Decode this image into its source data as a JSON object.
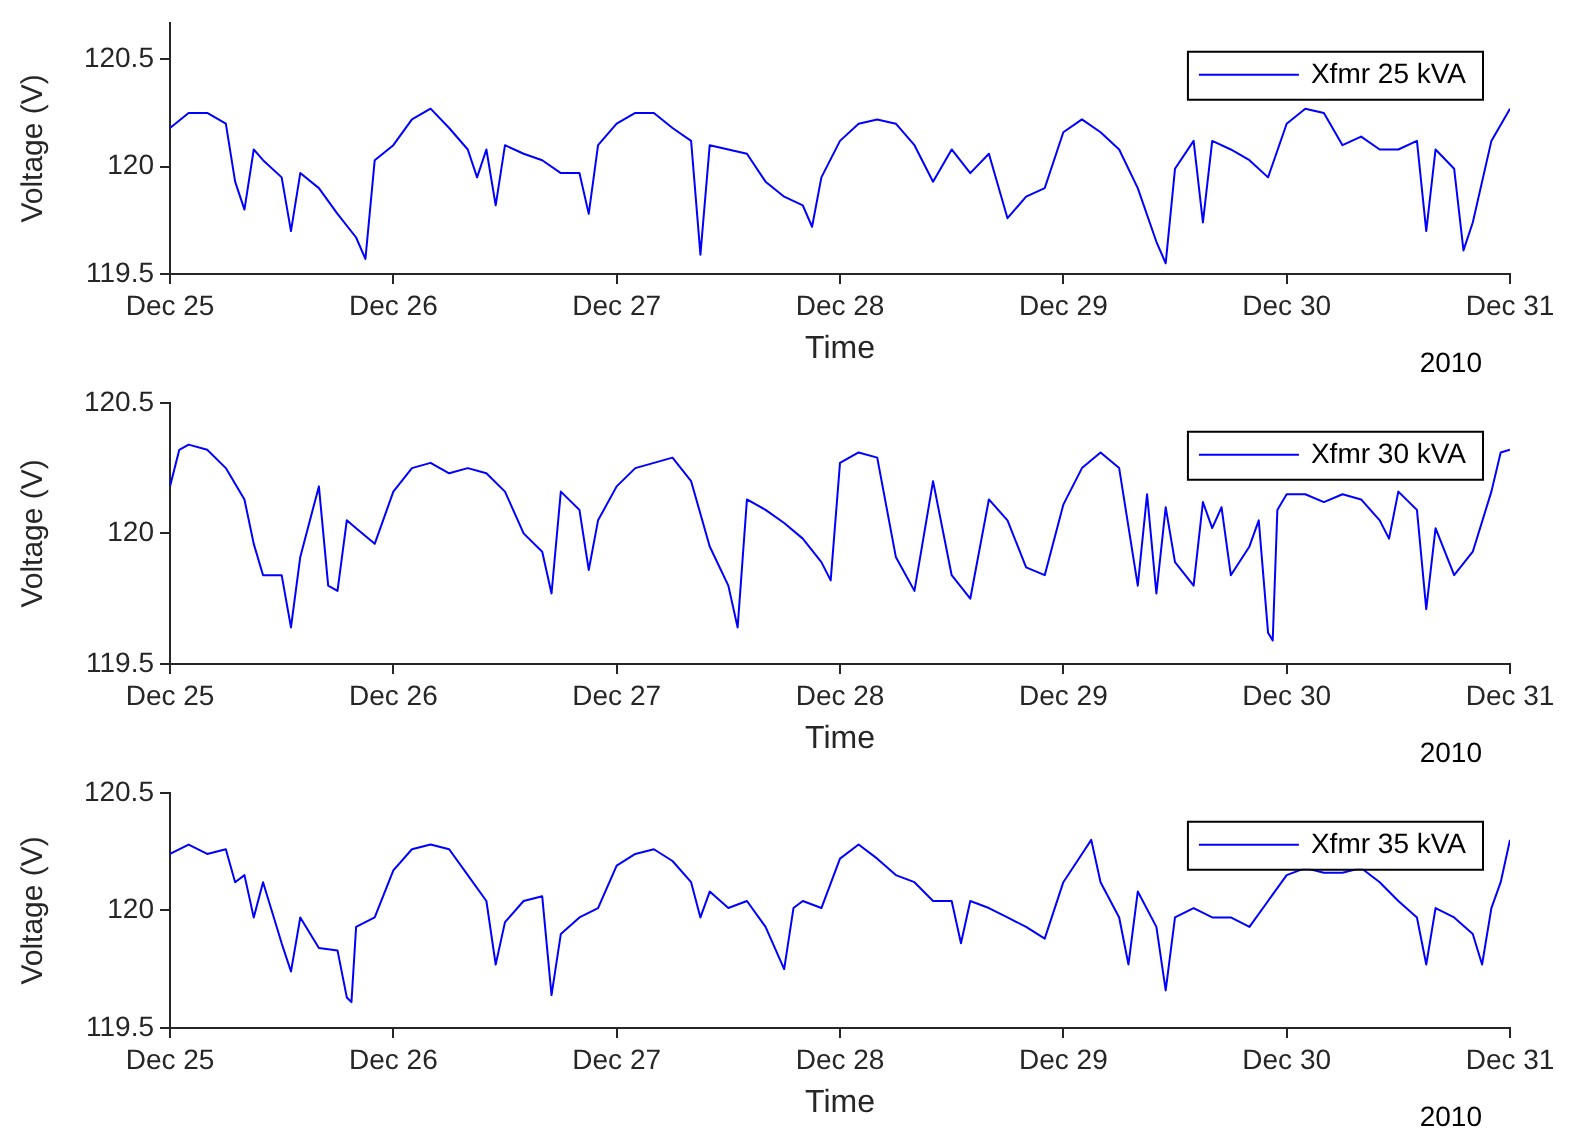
{
  "chart_data": [
    {
      "type": "line",
      "xlabel": "Time",
      "ylabel": "Voltage (V)",
      "annotations": [
        "2010"
      ],
      "legend": "top right",
      "marker": "none",
      "line_style": "solid",
      "xlim": [
        "2010-12-25",
        "2010-12-31"
      ],
      "xticks": [
        {
          "value": "2010-12-25",
          "label": "Dec 25"
        },
        {
          "value": "2010-12-26",
          "label": "Dec 26"
        },
        {
          "value": "2010-12-27",
          "label": "Dec 27"
        },
        {
          "value": "2010-12-28",
          "label": "Dec 28"
        },
        {
          "value": "2010-12-29",
          "label": "Dec 29"
        },
        {
          "value": "2010-12-30",
          "label": "Dec 30"
        },
        {
          "value": "2010-12-31",
          "label": "Dec 31"
        }
      ],
      "ylim": [
        119.5,
        120.67
      ],
      "yticks": [
        119.5,
        120,
        120.5
      ],
      "series": [
        {
          "name": "Xfmr 25 kVA",
          "color": "#0000ff",
          "x": [
            "2010-12-25T00:00",
            "2010-12-25T02:00",
            "2010-12-25T04:00",
            "2010-12-25T06:00",
            "2010-12-25T07:00",
            "2010-12-25T08:00",
            "2010-12-25T09:00",
            "2010-12-25T10:00",
            "2010-12-25T12:00",
            "2010-12-25T13:00",
            "2010-12-25T14:00",
            "2010-12-25T16:00",
            "2010-12-25T18:00",
            "2010-12-25T20:00",
            "2010-12-25T21:00",
            "2010-12-25T22:00",
            "2010-12-26T00:00",
            "2010-12-26T02:00",
            "2010-12-26T04:00",
            "2010-12-26T06:00",
            "2010-12-26T08:00",
            "2010-12-26T09:00",
            "2010-12-26T10:00",
            "2010-12-26T11:00",
            "2010-12-26T12:00",
            "2010-12-26T14:00",
            "2010-12-26T16:00",
            "2010-12-26T18:00",
            "2010-12-26T20:00",
            "2010-12-26T21:00",
            "2010-12-26T22:00",
            "2010-12-27T00:00",
            "2010-12-27T02:00",
            "2010-12-27T04:00",
            "2010-12-27T06:00",
            "2010-12-27T08:00",
            "2010-12-27T09:00",
            "2010-12-27T10:00",
            "2010-12-27T12:00",
            "2010-12-27T14:00",
            "2010-12-27T16:00",
            "2010-12-27T18:00",
            "2010-12-27T20:00",
            "2010-12-27T21:00",
            "2010-12-27T22:00",
            "2010-12-28T00:00",
            "2010-12-28T02:00",
            "2010-12-28T04:00",
            "2010-12-28T06:00",
            "2010-12-28T08:00",
            "2010-12-28T10:00",
            "2010-12-28T12:00",
            "2010-12-28T14:00",
            "2010-12-28T16:00",
            "2010-12-28T18:00",
            "2010-12-28T20:00",
            "2010-12-28T22:00",
            "2010-12-29T00:00",
            "2010-12-29T02:00",
            "2010-12-29T04:00",
            "2010-12-29T06:00",
            "2010-12-29T08:00",
            "2010-12-29T10:00",
            "2010-12-29T11:00",
            "2010-12-29T12:00",
            "2010-12-29T14:00",
            "2010-12-29T15:00",
            "2010-12-29T16:00",
            "2010-12-29T18:00",
            "2010-12-29T20:00",
            "2010-12-29T22:00",
            "2010-12-30T00:00",
            "2010-12-30T02:00",
            "2010-12-30T04:00",
            "2010-12-30T06:00",
            "2010-12-30T08:00",
            "2010-12-30T10:00",
            "2010-12-30T12:00",
            "2010-12-30T14:00",
            "2010-12-30T15:00",
            "2010-12-30T16:00",
            "2010-12-30T18:00",
            "2010-12-30T19:00",
            "2010-12-30T20:00",
            "2010-12-30T22:00",
            "2010-12-31T00:00"
          ],
          "values": [
            120.18,
            120.25,
            120.25,
            120.2,
            119.93,
            119.8,
            120.08,
            120.03,
            119.95,
            119.7,
            119.97,
            119.9,
            119.78,
            119.67,
            119.57,
            120.03,
            120.1,
            120.22,
            120.27,
            120.18,
            120.08,
            119.95,
            120.08,
            119.82,
            120.1,
            120.06,
            120.03,
            119.97,
            119.97,
            119.78,
            120.1,
            120.2,
            120.25,
            120.25,
            120.18,
            120.12,
            119.59,
            120.1,
            120.08,
            120.06,
            119.93,
            119.86,
            119.82,
            119.72,
            119.95,
            120.12,
            120.2,
            120.22,
            120.2,
            120.1,
            119.93,
            120.08,
            119.97,
            120.06,
            119.76,
            119.86,
            119.9,
            120.16,
            120.22,
            120.16,
            120.08,
            119.9,
            119.65,
            119.55,
            119.99,
            120.12,
            119.74,
            120.12,
            120.08,
            120.03,
            119.95,
            120.2,
            120.27,
            120.25,
            120.1,
            120.14,
            120.08,
            120.08,
            120.12,
            119.7,
            120.08,
            119.99,
            119.61,
            119.74,
            120.12,
            120.27
          ]
        }
      ]
    },
    {
      "type": "line",
      "xlabel": "Time",
      "ylabel": "Voltage (V)",
      "annotations": [
        "2010"
      ],
      "legend": "top right",
      "marker": "none",
      "line_style": "solid",
      "xlim": [
        "2010-12-25",
        "2010-12-31"
      ],
      "xticks": [
        {
          "value": "2010-12-25",
          "label": "Dec 25"
        },
        {
          "value": "2010-12-26",
          "label": "Dec 26"
        },
        {
          "value": "2010-12-27",
          "label": "Dec 27"
        },
        {
          "value": "2010-12-28",
          "label": "Dec 28"
        },
        {
          "value": "2010-12-29",
          "label": "Dec 29"
        },
        {
          "value": "2010-12-30",
          "label": "Dec 30"
        },
        {
          "value": "2010-12-31",
          "label": "Dec 31"
        }
      ],
      "ylim": [
        119.5,
        120.5
      ],
      "yticks": [
        119.5,
        120,
        120.5
      ],
      "series": [
        {
          "name": "Xfmr 30 kVA",
          "color": "#0000ff",
          "x": [
            "2010-12-25T00:00",
            "2010-12-25T01:00",
            "2010-12-25T02:00",
            "2010-12-25T04:00",
            "2010-12-25T06:00",
            "2010-12-25T08:00",
            "2010-12-25T09:00",
            "2010-12-25T10:00",
            "2010-12-25T12:00",
            "2010-12-25T13:00",
            "2010-12-25T14:00",
            "2010-12-25T16:00",
            "2010-12-25T17:00",
            "2010-12-25T18:00",
            "2010-12-25T19:00",
            "2010-12-25T20:00",
            "2010-12-25T22:00",
            "2010-12-26T00:00",
            "2010-12-26T02:00",
            "2010-12-26T04:00",
            "2010-12-26T06:00",
            "2010-12-26T08:00",
            "2010-12-26T10:00",
            "2010-12-26T12:00",
            "2010-12-26T14:00",
            "2010-12-26T16:00",
            "2010-12-26T17:00",
            "2010-12-26T18:00",
            "2010-12-26T20:00",
            "2010-12-26T21:00",
            "2010-12-26T22:00",
            "2010-12-27T00:00",
            "2010-12-27T02:00",
            "2010-12-27T04:00",
            "2010-12-27T06:00",
            "2010-12-27T08:00",
            "2010-12-27T10:00",
            "2010-12-27T12:00",
            "2010-12-27T13:00",
            "2010-12-27T14:00",
            "2010-12-27T16:00",
            "2010-12-27T18:00",
            "2010-12-27T20:00",
            "2010-12-27T22:00",
            "2010-12-27T23:00",
            "2010-12-28T00:00",
            "2010-12-28T02:00",
            "2010-12-28T04:00",
            "2010-12-28T06:00",
            "2010-12-28T08:00",
            "2010-12-28T10:00",
            "2010-12-28T12:00",
            "2010-12-28T14:00",
            "2010-12-28T16:00",
            "2010-12-28T18:00",
            "2010-12-28T20:00",
            "2010-12-28T22:00",
            "2010-12-29T00:00",
            "2010-12-29T02:00",
            "2010-12-29T04:00",
            "2010-12-29T06:00",
            "2010-12-29T08:00",
            "2010-12-29T09:00",
            "2010-12-29T10:00",
            "2010-12-29T11:00",
            "2010-12-29T12:00",
            "2010-12-29T14:00",
            "2010-12-29T15:00",
            "2010-12-29T16:00",
            "2010-12-29T17:00",
            "2010-12-29T18:00",
            "2010-12-29T20:00",
            "2010-12-29T21:00",
            "2010-12-29T22:00",
            "2010-12-29T22:30",
            "2010-12-29T23:00",
            "2010-12-30T00:00",
            "2010-12-30T02:00",
            "2010-12-30T04:00",
            "2010-12-30T06:00",
            "2010-12-30T08:00",
            "2010-12-30T10:00",
            "2010-12-30T11:00",
            "2010-12-30T12:00",
            "2010-12-30T14:00",
            "2010-12-30T15:00",
            "2010-12-30T16:00",
            "2010-12-30T18:00",
            "2010-12-30T20:00",
            "2010-12-30T22:00",
            "2010-12-30T23:00",
            "2010-12-31T00:00"
          ],
          "values": [
            120.18,
            120.32,
            120.34,
            120.32,
            120.25,
            120.13,
            119.96,
            119.84,
            119.84,
            119.64,
            119.91,
            120.18,
            119.8,
            119.78,
            120.05,
            120.02,
            119.96,
            120.16,
            120.25,
            120.27,
            120.23,
            120.25,
            120.23,
            120.16,
            120.0,
            119.93,
            119.77,
            120.16,
            120.09,
            119.86,
            120.05,
            120.18,
            120.25,
            120.27,
            120.29,
            120.2,
            119.95,
            119.8,
            119.64,
            120.13,
            120.09,
            120.04,
            119.98,
            119.89,
            119.82,
            120.27,
            120.31,
            120.29,
            119.91,
            119.78,
            120.2,
            119.84,
            119.75,
            120.13,
            120.05,
            119.87,
            119.84,
            120.11,
            120.25,
            120.31,
            120.25,
            119.8,
            120.15,
            119.77,
            120.1,
            119.89,
            119.8,
            120.12,
            120.02,
            120.1,
            119.84,
            119.95,
            120.05,
            119.62,
            119.59,
            120.09,
            120.15,
            120.15,
            120.12,
            120.15,
            120.13,
            120.05,
            119.98,
            120.16,
            120.09,
            119.71,
            120.02,
            119.84,
            119.93,
            120.16,
            120.31,
            120.32
          ]
        }
      ]
    },
    {
      "type": "line",
      "xlabel": "Time",
      "ylabel": "Voltage (V)",
      "annotations": [
        "2010"
      ],
      "legend": "top right",
      "marker": "none",
      "line_style": "solid",
      "xlim": [
        "2010-12-25",
        "2010-12-31"
      ],
      "xticks": [
        {
          "value": "2010-12-25",
          "label": "Dec 25"
        },
        {
          "value": "2010-12-26",
          "label": "Dec 26"
        },
        {
          "value": "2010-12-27",
          "label": "Dec 27"
        },
        {
          "value": "2010-12-28",
          "label": "Dec 28"
        },
        {
          "value": "2010-12-29",
          "label": "Dec 29"
        },
        {
          "value": "2010-12-30",
          "label": "Dec 30"
        },
        {
          "value": "2010-12-31",
          "label": "Dec 31"
        }
      ],
      "ylim": [
        119.5,
        120.5
      ],
      "yticks": [
        119.5,
        120,
        120.5
      ],
      "series": [
        {
          "name": "Xfmr 35 kVA",
          "color": "#0000ff",
          "x": [
            "2010-12-25T00:00",
            "2010-12-25T02:00",
            "2010-12-25T04:00",
            "2010-12-25T06:00",
            "2010-12-25T07:00",
            "2010-12-25T08:00",
            "2010-12-25T09:00",
            "2010-12-25T10:00",
            "2010-12-25T12:00",
            "2010-12-25T13:00",
            "2010-12-25T14:00",
            "2010-12-25T16:00",
            "2010-12-25T18:00",
            "2010-12-25T19:00",
            "2010-12-25T19:30",
            "2010-12-25T20:00",
            "2010-12-25T22:00",
            "2010-12-26T00:00",
            "2010-12-26T02:00",
            "2010-12-26T04:00",
            "2010-12-26T06:00",
            "2010-12-26T08:00",
            "2010-12-26T10:00",
            "2010-12-26T11:00",
            "2010-12-26T12:00",
            "2010-12-26T14:00",
            "2010-12-26T16:00",
            "2010-12-26T17:00",
            "2010-12-26T18:00",
            "2010-12-26T20:00",
            "2010-12-26T22:00",
            "2010-12-27T00:00",
            "2010-12-27T02:00",
            "2010-12-27T04:00",
            "2010-12-27T06:00",
            "2010-12-27T08:00",
            "2010-12-27T09:00",
            "2010-12-27T10:00",
            "2010-12-27T12:00",
            "2010-12-27T14:00",
            "2010-12-27T16:00",
            "2010-12-27T18:00",
            "2010-12-27T19:00",
            "2010-12-27T20:00",
            "2010-12-27T22:00",
            "2010-12-28T00:00",
            "2010-12-28T02:00",
            "2010-12-28T04:00",
            "2010-12-28T06:00",
            "2010-12-28T08:00",
            "2010-12-28T10:00",
            "2010-12-28T12:00",
            "2010-12-28T13:00",
            "2010-12-28T14:00",
            "2010-12-28T16:00",
            "2010-12-28T18:00",
            "2010-12-28T20:00",
            "2010-12-28T22:00",
            "2010-12-29T00:00",
            "2010-12-29T02:00",
            "2010-12-29T03:00",
            "2010-12-29T04:00",
            "2010-12-29T06:00",
            "2010-12-29T07:00",
            "2010-12-29T08:00",
            "2010-12-29T10:00",
            "2010-12-29T11:00",
            "2010-12-29T12:00",
            "2010-12-29T14:00",
            "2010-12-29T16:00",
            "2010-12-29T18:00",
            "2010-12-29T20:00",
            "2010-12-29T22:00",
            "2010-12-30T00:00",
            "2010-12-30T02:00",
            "2010-12-30T04:00",
            "2010-12-30T06:00",
            "2010-12-30T08:00",
            "2010-12-30T10:00",
            "2010-12-30T12:00",
            "2010-12-30T14:00",
            "2010-12-30T15:00",
            "2010-12-30T16:00",
            "2010-12-30T18:00",
            "2010-12-30T20:00",
            "2010-12-30T21:00",
            "2010-12-30T22:00",
            "2010-12-30T23:00",
            "2010-12-31T00:00"
          ],
          "values": [
            120.24,
            120.28,
            120.24,
            120.26,
            120.12,
            120.15,
            119.97,
            120.12,
            119.86,
            119.74,
            119.97,
            119.84,
            119.83,
            119.63,
            119.61,
            119.93,
            119.97,
            120.17,
            120.26,
            120.28,
            120.26,
            120.15,
            120.04,
            119.77,
            119.95,
            120.04,
            120.06,
            119.64,
            119.9,
            119.97,
            120.01,
            120.19,
            120.24,
            120.26,
            120.21,
            120.12,
            119.97,
            120.08,
            120.01,
            120.04,
            119.93,
            119.75,
            120.01,
            120.04,
            120.01,
            120.22,
            120.28,
            120.22,
            120.15,
            120.12,
            120.04,
            120.04,
            119.86,
            120.04,
            120.01,
            119.97,
            119.93,
            119.88,
            120.12,
            120.24,
            120.3,
            120.12,
            119.97,
            119.77,
            120.08,
            119.93,
            119.66,
            119.97,
            120.01,
            119.97,
            119.97,
            119.93,
            120.04,
            120.15,
            120.18,
            120.16,
            120.16,
            120.18,
            120.12,
            120.04,
            119.97,
            119.77,
            120.01,
            119.97,
            119.9,
            119.77,
            120.01,
            120.12,
            120.3
          ]
        }
      ]
    }
  ]
}
